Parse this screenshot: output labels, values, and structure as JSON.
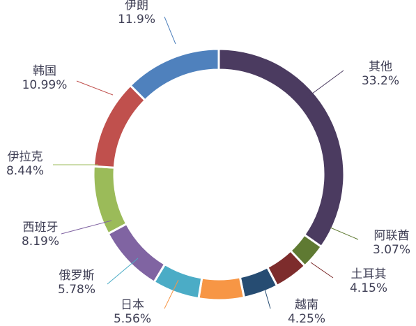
{
  "chart_data": {
    "type": "pie",
    "subtype": "donut",
    "title": "",
    "legend": "none",
    "slices": [
      {
        "label": "其他",
        "value_label": "33.2%",
        "value": 33.2,
        "color": "#4b3b60"
      },
      {
        "label": "阿联酋",
        "value_label": "3.07%",
        "value": 3.07,
        "color": "#5f7a32"
      },
      {
        "label": "土耳其",
        "value_label": "4.15%",
        "value": 4.15,
        "color": "#7d2c2c"
      },
      {
        "label": "越南",
        "value_label": "4.25%",
        "value": 4.25,
        "color": "#264c72"
      },
      {
        "label": "日本",
        "value_label": "5.56%",
        "value": 5.56,
        "color": "#f79645"
      },
      {
        "label": "俄罗斯",
        "value_label": "5.78%",
        "value": 5.78,
        "color": "#4bacc6"
      },
      {
        "label": "西班牙",
        "value_label": "8.19%",
        "value": 8.19,
        "color": "#8064a2"
      },
      {
        "label": "伊拉克",
        "value_label": "8.44%",
        "value": 8.44,
        "color": "#9bbb59"
      },
      {
        "label": "韩国",
        "value_label": "10.99%",
        "value": 10.99,
        "color": "#c0504d"
      },
      {
        "label": "伊朗",
        "value_label": "11.9%",
        "value": 11.9,
        "color": "#4f81bd"
      }
    ]
  }
}
